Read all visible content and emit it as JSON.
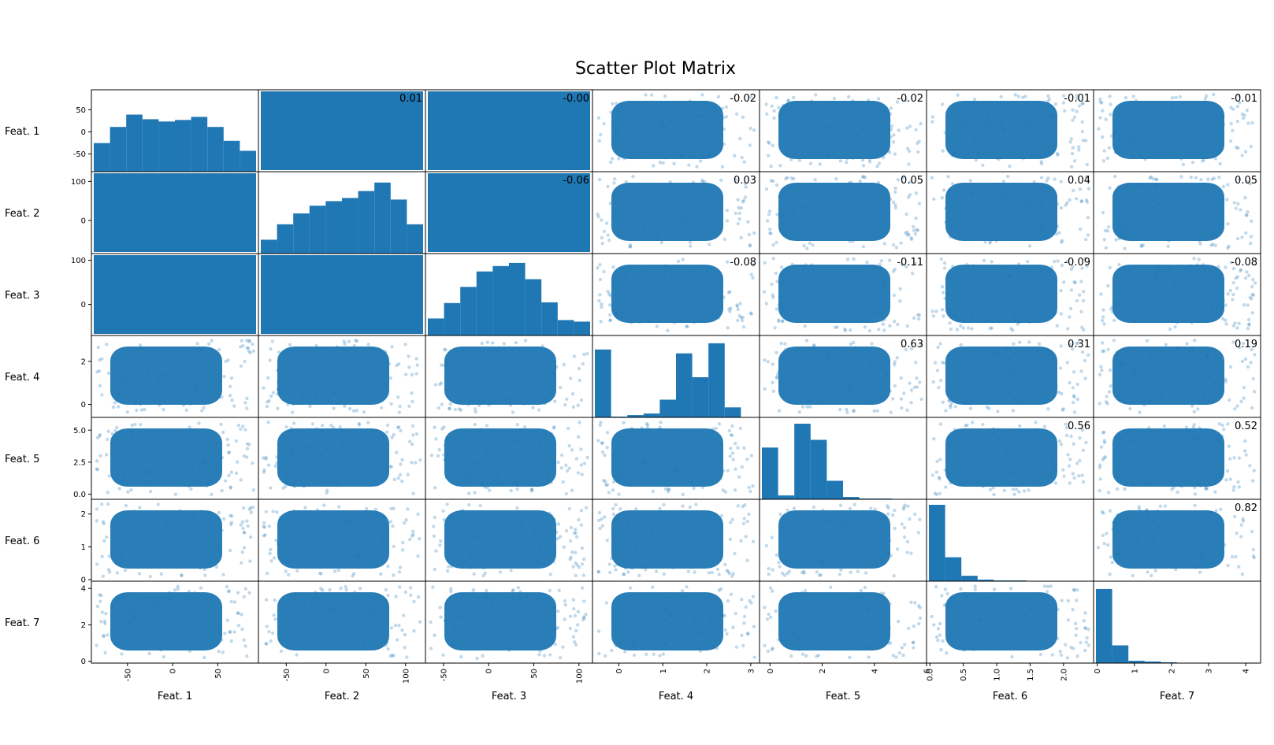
{
  "chart_data": {
    "type": "scatter_matrix",
    "title": "Scatter Plot Matrix",
    "color": "#1f77b4",
    "features": [
      {
        "name": "Feat. 1",
        "range": [
          -90,
          95
        ],
        "ticks": [
          -50,
          0,
          50
        ],
        "tick_labels": [
          "-50",
          "0",
          "50"
        ],
        "hist": [
          0.37,
          0.58,
          0.74,
          0.68,
          0.65,
          0.67,
          0.71,
          0.58,
          0.4,
          0.27
        ]
      },
      {
        "name": "Feat. 2",
        "range": [
          -85,
          125
        ],
        "ticks": [
          -50,
          0,
          50,
          100
        ],
        "tick_labels": [
          "-50",
          "0",
          "50",
          "100"
        ],
        "hist": [
          0.18,
          0.38,
          0.52,
          0.62,
          0.68,
          0.72,
          0.81,
          0.92,
          0.7,
          0.38
        ]
      },
      {
        "name": "Feat. 3",
        "range": [
          -70,
          115
        ],
        "ticks": [
          -50,
          0,
          50,
          100
        ],
        "tick_labels": [
          "-50",
          "0",
          "50",
          "100"
        ],
        "hist": [
          0.22,
          0.42,
          0.63,
          0.83,
          0.9,
          0.94,
          0.73,
          0.43,
          0.2,
          0.18
        ]
      },
      {
        "name": "Feat. 4",
        "range": [
          -0.6,
          3.2
        ],
        "ticks": [
          0,
          1,
          2,
          3
        ],
        "tick_labels": [
          "0",
          "1",
          "2",
          "3"
        ],
        "hist": [
          0.88,
          0.01,
          0.03,
          0.05,
          0.23,
          0.83,
          0.52,
          0.96,
          0.13,
          0.0
        ]
      },
      {
        "name": "Feat. 5",
        "range": [
          -0.4,
          6.0
        ],
        "ticks": [
          0,
          2,
          4,
          6
        ],
        "tick_labels": [
          "0",
          "2",
          "4",
          "6"
        ],
        "hist": [
          0.67,
          0.05,
          0.98,
          0.77,
          0.24,
          0.03,
          0.01,
          0.01,
          0.0,
          0.0
        ]
      },
      {
        "name": "Feat. 6",
        "range": [
          -0.05,
          2.45
        ],
        "ticks": [
          0.0,
          0.5,
          1.0,
          1.5,
          2.0
        ],
        "tick_labels": [
          "0.0",
          "0.5",
          "1.0",
          "1.5",
          "2.0"
        ],
        "hist": [
          0.99,
          0.31,
          0.07,
          0.02,
          0.01,
          0.01,
          0.0,
          0.0,
          0.0,
          0.0
        ]
      },
      {
        "name": "Feat. 7",
        "range": [
          -0.1,
          4.4
        ],
        "ticks": [
          0,
          1,
          2,
          3,
          4
        ],
        "tick_labels": [
          "0",
          "1",
          "2",
          "3",
          "4"
        ],
        "hist": [
          0.96,
          0.23,
          0.03,
          0.02,
          0.01,
          0.0,
          0.0,
          0.0,
          0.0,
          0.0
        ]
      }
    ],
    "y_ticks": [
      {
        "ticks": [
          -50,
          0,
          50
        ],
        "tick_labels": [
          "-50",
          "0",
          "50"
        ]
      },
      {
        "ticks": [
          0,
          100
        ],
        "tick_labels": [
          "0",
          "100"
        ]
      },
      {
        "ticks": [
          0,
          100
        ],
        "tick_labels": [
          "0",
          "100"
        ]
      },
      {
        "ticks": [
          0,
          2
        ],
        "tick_labels": [
          "0",
          "2"
        ]
      },
      {
        "ticks": [
          0.0,
          2.5,
          5.0
        ],
        "tick_labels": [
          "0.0",
          "2.5",
          "5.0"
        ]
      },
      {
        "ticks": [
          0,
          1,
          2
        ],
        "tick_labels": [
          "0",
          "1",
          "2"
        ]
      },
      {
        "ticks": [
          0,
          2,
          4
        ],
        "tick_labels": [
          "0",
          "2",
          "4"
        ]
      }
    ],
    "correlations": [
      {
        "row": 0,
        "col": 1,
        "value": "0.01"
      },
      {
        "row": 0,
        "col": 2,
        "value": "-0.00"
      },
      {
        "row": 0,
        "col": 3,
        "value": "-0.02"
      },
      {
        "row": 0,
        "col": 4,
        "value": "-0.02"
      },
      {
        "row": 0,
        "col": 5,
        "value": "-0.01"
      },
      {
        "row": 0,
        "col": 6,
        "value": "-0.01"
      },
      {
        "row": 1,
        "col": 2,
        "value": "-0.06"
      },
      {
        "row": 1,
        "col": 3,
        "value": "0.03"
      },
      {
        "row": 1,
        "col": 4,
        "value": "0.05"
      },
      {
        "row": 1,
        "col": 5,
        "value": "0.04"
      },
      {
        "row": 1,
        "col": 6,
        "value": "0.05"
      },
      {
        "row": 2,
        "col": 3,
        "value": "-0.08"
      },
      {
        "row": 2,
        "col": 4,
        "value": "-0.11"
      },
      {
        "row": 2,
        "col": 5,
        "value": "-0.09"
      },
      {
        "row": 2,
        "col": 6,
        "value": "-0.08"
      },
      {
        "row": 3,
        "col": 4,
        "value": "0.63"
      },
      {
        "row": 3,
        "col": 5,
        "value": "0.31"
      },
      {
        "row": 3,
        "col": 6,
        "value": "0.19"
      },
      {
        "row": 4,
        "col": 5,
        "value": "0.56"
      },
      {
        "row": 4,
        "col": 6,
        "value": "0.52"
      },
      {
        "row": 5,
        "col": 6,
        "value": "0.82"
      }
    ]
  }
}
